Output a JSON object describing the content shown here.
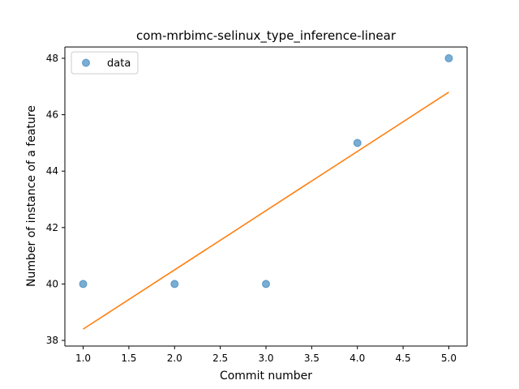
{
  "chart_data": {
    "type": "scatter",
    "title": "com-mrbimc-selinux_type_inference-linear",
    "xlabel": "Commit number",
    "ylabel": "Number of instance of a feature",
    "xlim": [
      0.8,
      5.2
    ],
    "ylim": [
      37.8,
      48.4
    ],
    "xticks": [
      "1.0",
      "1.5",
      "2.0",
      "2.5",
      "3.0",
      "3.5",
      "4.0",
      "4.5",
      "5.0"
    ],
    "yticks": [
      "38",
      "40",
      "42",
      "44",
      "46",
      "48"
    ],
    "grid": false,
    "legend_position": "upper-left",
    "series": [
      {
        "name": "data",
        "kind": "scatter",
        "color": "#1f77b4",
        "x": [
          1,
          2,
          3,
          4,
          5
        ],
        "y": [
          40,
          40,
          40,
          45,
          48
        ]
      },
      {
        "kind": "line",
        "color": "#ff7f0e",
        "x": [
          1,
          5
        ],
        "y": [
          38.4,
          46.8
        ]
      }
    ]
  }
}
